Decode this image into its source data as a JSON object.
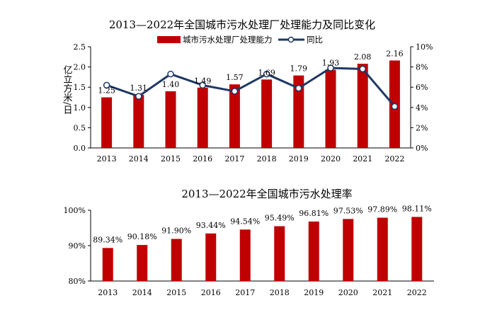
{
  "chart_data": [
    {
      "type": "bar+line",
      "title": "2013—2022年全国城市污水处理厂处理能力及同比变化",
      "ylabel": "亿立方米/日",
      "categories": [
        "2013",
        "2014",
        "2015",
        "2016",
        "2017",
        "2018",
        "2019",
        "2020",
        "2021",
        "2022"
      ],
      "series": [
        {
          "name": "城市污水处理厂处理能力",
          "type": "bar",
          "axis": "left",
          "values": [
            1.25,
            1.31,
            1.4,
            1.49,
            1.57,
            1.69,
            1.79,
            1.93,
            2.08,
            2.16
          ],
          "labels": [
            "1.25",
            "1.31",
            "1.40",
            "1.49",
            "1.57",
            "1.69",
            "1.79",
            "1.93",
            "2.08",
            "2.16"
          ]
        },
        {
          "name": "同比",
          "type": "line",
          "axis": "right",
          "values": [
            6.2,
            5.1,
            7.3,
            6.2,
            5.6,
            7.3,
            5.9,
            7.9,
            7.8,
            4.1
          ]
        }
      ],
      "ylim_left": [
        0,
        2.5
      ],
      "left_ticks": [
        "0.0",
        "0.5",
        "1.0",
        "1.5",
        "2.0",
        "2.5"
      ],
      "ylim_right": [
        0,
        10
      ],
      "right_ticks": [
        "0%",
        "2%",
        "4%",
        "6%",
        "8%",
        "10%"
      ],
      "legend": "top-center",
      "colors": {
        "bar": "#c00000",
        "line": "#1f3864",
        "marker_fill": "#ffffff"
      }
    },
    {
      "type": "bar",
      "title": "2013—2022年全国城市污水处理率",
      "categories": [
        "2013",
        "2014",
        "2015",
        "2016",
        "2017",
        "2018",
        "2019",
        "2020",
        "2021",
        "2022"
      ],
      "values": [
        89.34,
        90.18,
        91.9,
        93.44,
        94.54,
        95.49,
        96.81,
        97.53,
        97.89,
        98.11
      ],
      "labels": [
        "89.34%",
        "90.18%",
        "91.90%",
        "93.44%",
        "94.54%",
        "95.49%",
        "96.81%",
        "97.53%",
        "97.89%",
        "98.11%"
      ],
      "ylim": [
        80,
        100
      ],
      "ticks": [
        "80%",
        "90%",
        "100%"
      ],
      "colors": {
        "bar": "#c00000"
      }
    }
  ]
}
